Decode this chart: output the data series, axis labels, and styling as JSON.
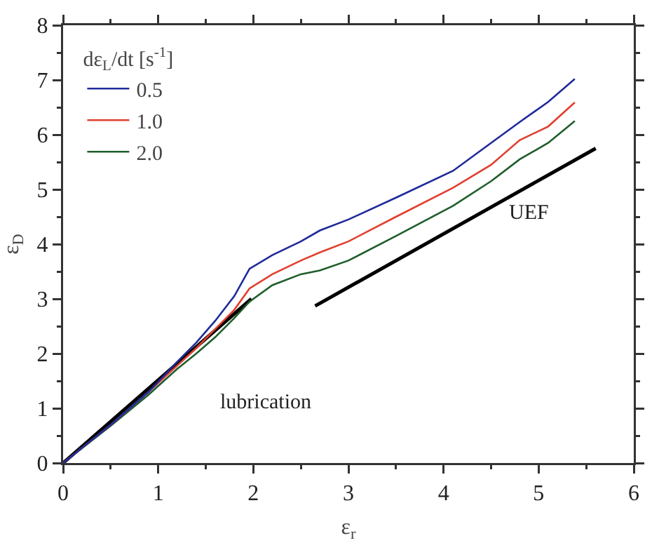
{
  "chart_data": {
    "type": "line",
    "xlabel": "ε$_{r}$",
    "ylabel": "ε$_{D}$",
    "legend_title": "dε$_{L}$/dt [s$^{-1}$]",
    "legend": "top left",
    "marker": "none",
    "line_style": "solid",
    "grid": false,
    "xlim": [
      0,
      6
    ],
    "ylim": [
      0,
      8
    ],
    "xticks": [
      0,
      {
        "value": 0.5,
        "label": null
      },
      1,
      {
        "value": 1.5,
        "label": null
      },
      2,
      {
        "value": 2.5,
        "label": null
      },
      3,
      {
        "value": 3.5,
        "label": null
      },
      4,
      {
        "value": 4.5,
        "label": null
      },
      5,
      {
        "value": 5.5,
        "label": null
      },
      6
    ],
    "yticks": [
      0,
      {
        "value": 0.5,
        "label": null
      },
      1,
      {
        "value": 1.5,
        "label": null
      },
      2,
      {
        "value": 2.5,
        "label": null
      },
      3,
      {
        "value": 3.5,
        "label": null
      },
      4,
      {
        "value": 4.5,
        "label": null
      },
      5,
      {
        "value": 5.5,
        "label": null
      },
      6,
      {
        "value": 6.5,
        "label": null
      },
      7,
      {
        "value": 7.5,
        "label": null
      },
      8
    ],
    "x": [
      0,
      0.5,
      0.9,
      1.2,
      1.4,
      1.6,
      1.8,
      1.96,
      2.2,
      2.5,
      2.7,
      3,
      3.5,
      4.1,
      4.5,
      4.8,
      5.1,
      5.38
    ],
    "series": [
      {
        "name": "0.5",
        "color": "#1f2a9a",
        "values": [
          0,
          0.7,
          1.3,
          1.85,
          2.2,
          2.6,
          3.05,
          3.55,
          3.8,
          4.05,
          4.25,
          4.45,
          4.85,
          5.34,
          5.85,
          6.23,
          6.6,
          7.02
        ]
      },
      {
        "name": "1.0",
        "color": "#e0402f",
        "values": [
          0,
          0.7,
          1.3,
          1.78,
          2.1,
          2.45,
          2.8,
          3.19,
          3.45,
          3.7,
          3.85,
          4.05,
          4.5,
          5.03,
          5.45,
          5.9,
          6.15,
          6.59
        ]
      },
      {
        "name": "2.0",
        "color": "#1e5e2a",
        "values": [
          0,
          0.68,
          1.25,
          1.72,
          2.0,
          2.3,
          2.65,
          2.95,
          3.25,
          3.45,
          3.52,
          3.7,
          4.15,
          4.7,
          5.15,
          5.55,
          5.85,
          6.25
        ]
      },
      {
        "color": "#000000",
        "x": [
          0,
          1.98
        ],
        "values": [
          0,
          3.0
        ]
      },
      {
        "color": "#000000",
        "x": [
          2.65,
          5.6
        ],
        "values": [
          2.87,
          5.75
        ]
      }
    ],
    "annotations": [
      "lubrication",
      "UEF"
    ]
  }
}
